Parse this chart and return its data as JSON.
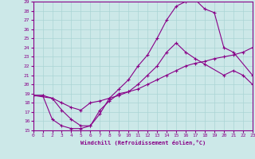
{
  "xlabel": "Windchill (Refroidissement éolien,°C)",
  "bg_color": "#cce8e8",
  "line_color": "#880088",
  "grid_color": "#aad4d4",
  "xlim": [
    0,
    23
  ],
  "ylim": [
    15,
    29
  ],
  "xticks": [
    0,
    1,
    2,
    3,
    4,
    5,
    6,
    7,
    8,
    9,
    10,
    11,
    12,
    13,
    14,
    15,
    16,
    17,
    18,
    19,
    20,
    21,
    22,
    23
  ],
  "yticks": [
    15,
    16,
    17,
    18,
    19,
    20,
    21,
    22,
    23,
    24,
    25,
    26,
    27,
    28,
    29
  ],
  "line1_x": [
    0,
    1,
    2,
    3,
    4,
    5,
    6,
    7,
    8,
    9,
    10,
    11,
    12,
    13,
    14,
    15,
    16,
    17,
    18,
    19,
    20,
    21,
    22,
    23
  ],
  "line1_y": [
    18.8,
    18.8,
    18.5,
    18.0,
    17.5,
    17.2,
    18.0,
    18.2,
    18.5,
    18.8,
    19.2,
    19.5,
    20.0,
    20.5,
    21.0,
    21.5,
    22.0,
    22.3,
    22.5,
    22.8,
    23.0,
    23.2,
    23.5,
    24.0
  ],
  "line2_x": [
    0,
    2,
    3,
    4,
    5,
    6,
    7,
    8,
    9,
    10,
    11,
    12,
    13,
    14,
    15,
    16,
    17,
    18,
    20,
    21,
    22,
    23
  ],
  "line2_y": [
    18.8,
    18.5,
    17.2,
    16.2,
    15.5,
    15.5,
    17.2,
    18.2,
    19.0,
    19.2,
    20.0,
    21.0,
    22.0,
    23.5,
    24.5,
    23.5,
    22.8,
    22.2,
    21.0,
    21.5,
    21.0,
    20.0
  ],
  "line3_x": [
    0,
    1,
    2,
    3,
    4,
    5,
    6,
    7,
    8,
    9,
    10,
    11,
    12,
    13,
    14,
    15,
    16,
    17,
    18,
    19,
    20,
    21,
    23
  ],
  "line3_y": [
    18.8,
    18.8,
    16.2,
    15.5,
    15.2,
    15.2,
    15.5,
    16.8,
    18.5,
    19.5,
    20.5,
    22.0,
    23.2,
    25.0,
    27.0,
    28.5,
    29.0,
    29.2,
    28.2,
    27.8,
    24.0,
    23.5,
    21.0
  ]
}
